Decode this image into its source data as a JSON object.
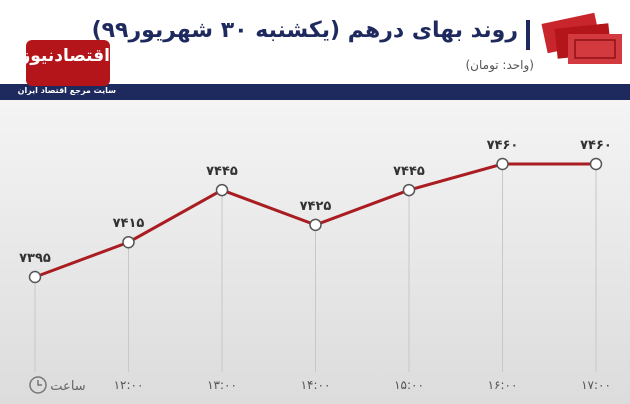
{
  "header": {
    "logo": "اقتصادنیوز",
    "tagline": "سایت مرجع اقتصاد ایران"
  },
  "chart_data": {
    "type": "line",
    "title": "روند بهای درهم (یکشنبه ۳۰ شهریور۹۹)",
    "subtitle": "(واحد: تومان)",
    "x_label": "ساعت",
    "categories": [
      null,
      "۱۲:۰۰",
      "۱۳:۰۰",
      "۱۴:۰۰",
      "۱۵:۰۰",
      "۱۶:۰۰",
      "۱۷:۰۰"
    ],
    "values": [
      7395,
      7415,
      7445,
      7425,
      7445,
      7460,
      7460
    ],
    "value_labels": [
      "۷۳۹۵",
      "۷۴۱۵",
      "۷۴۴۵",
      "۷۴۲۵",
      "۷۴۴۵",
      "۷۴۶۰",
      "۷۴۶۰"
    ],
    "color": "#a91d22"
  }
}
